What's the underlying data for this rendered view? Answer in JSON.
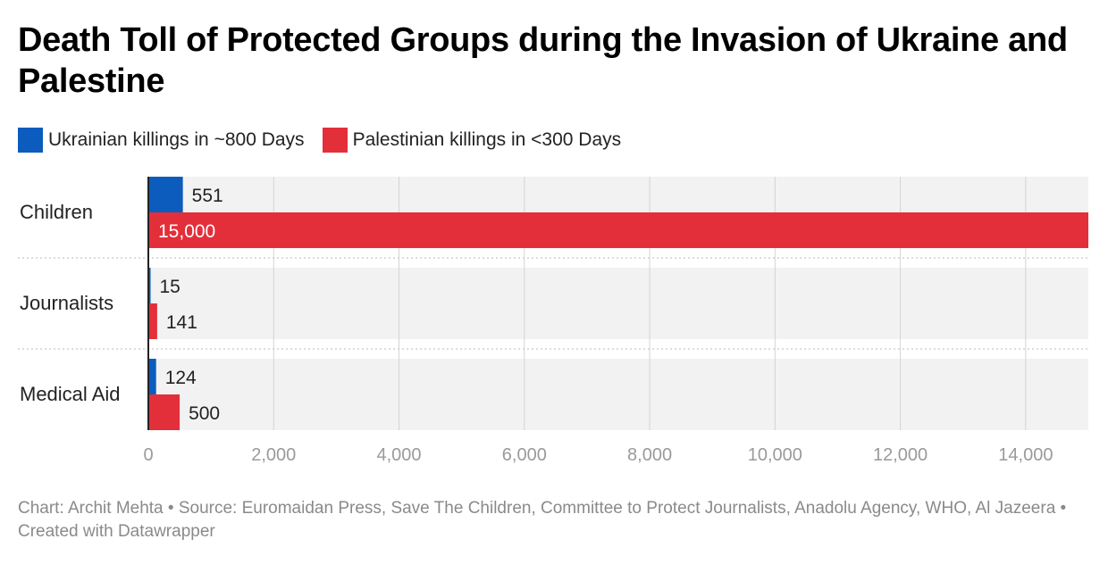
{
  "title": "Death Toll of Protected Groups during the Invasion of Ukraine and Palestine",
  "legend": [
    {
      "label": "Ukrainian killings in ~800 Days",
      "color": "#0b5cbd"
    },
    {
      "label": "Palestinian killings in <300 Days",
      "color": "#e32f3a"
    }
  ],
  "footer": "Chart: Archit Mehta • Source: Euromaidan Press, Save The Children, Committee to Protect Journalists, Anadolu Agency, WHO, Al Jazeera • Created with Datawrapper",
  "chart_data": {
    "type": "bar",
    "orientation": "horizontal",
    "categories": [
      "Children",
      "Journalists",
      "Medical Aid"
    ],
    "series": [
      {
        "name": "Ukrainian killings in ~800 Days",
        "color": "#0b5cbd",
        "values": [
          551,
          15,
          124
        ],
        "labels": [
          "551",
          "15",
          "124"
        ]
      },
      {
        "name": "Palestinian killings in <300 Days",
        "color": "#e32f3a",
        "values": [
          15000,
          141,
          500
        ],
        "labels": [
          "15,000",
          "141",
          "500"
        ]
      }
    ],
    "xlim": [
      0,
      15000
    ],
    "xticks": [
      0,
      2000,
      4000,
      6000,
      8000,
      10000,
      12000,
      14000
    ],
    "xtick_labels": [
      "0",
      "2,000",
      "4,000",
      "6,000",
      "8,000",
      "10,000",
      "12,000",
      "14,000"
    ],
    "grid": true,
    "legend_position": "top-left"
  }
}
